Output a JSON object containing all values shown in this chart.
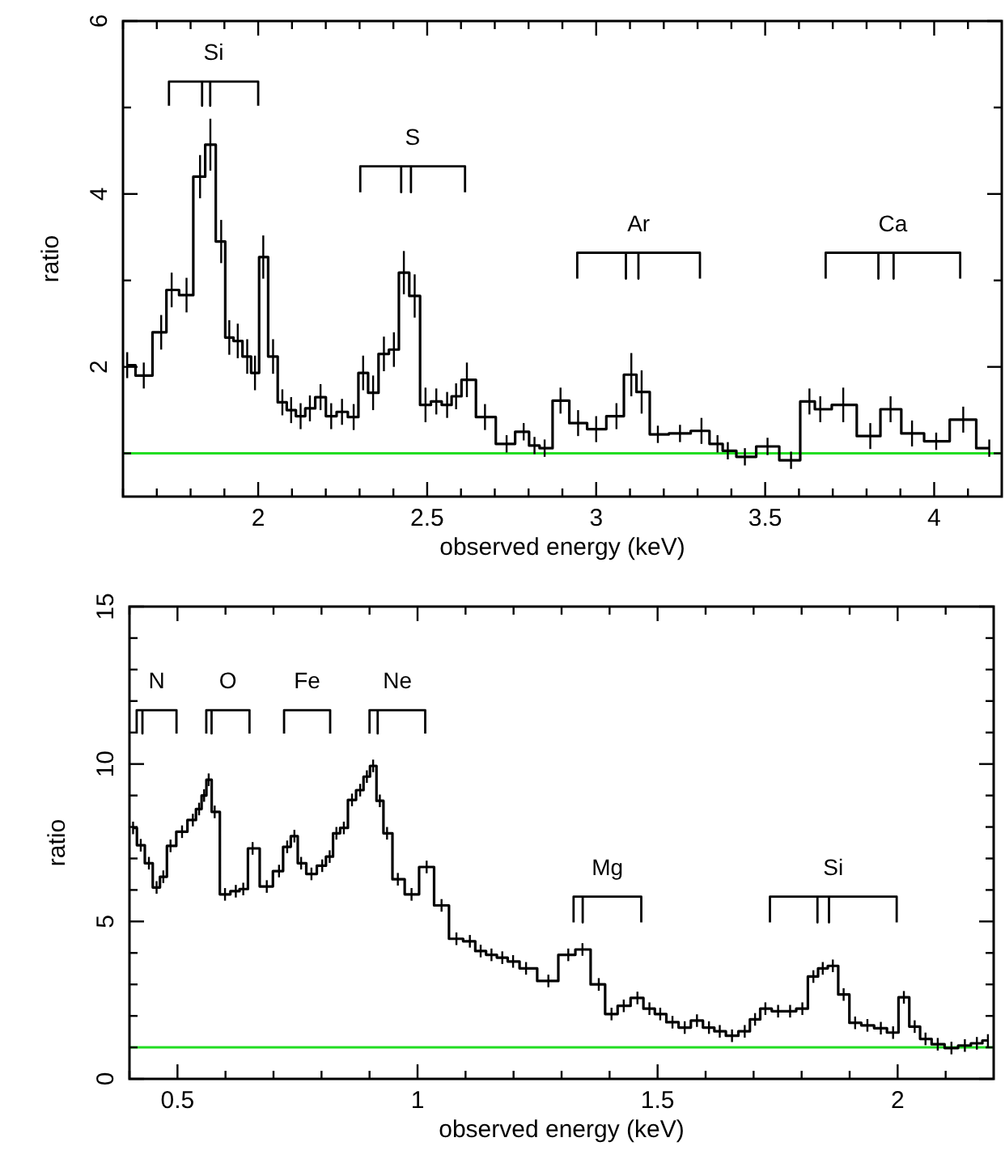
{
  "chart_data": [
    {
      "type": "step",
      "xlabel": "observed energy (keV)",
      "ylabel": "ratio",
      "xlim": [
        1.6,
        4.2
      ],
      "ylim": [
        0.5,
        6
      ],
      "xticks": [
        {
          "value": 1.6,
          "label": null
        },
        {
          "value": 1.7,
          "label": null
        },
        {
          "value": 1.8,
          "label": null
        },
        {
          "value": 1.9,
          "label": null
        },
        2,
        {
          "value": 2.1,
          "label": null
        },
        {
          "value": 2.2,
          "label": null
        },
        {
          "value": 2.3,
          "label": null
        },
        {
          "value": 2.4,
          "label": null
        },
        2.5,
        {
          "value": 2.6,
          "label": null
        },
        {
          "value": 2.7,
          "label": null
        },
        {
          "value": 2.8,
          "label": null
        },
        {
          "value": 2.9,
          "label": null
        },
        3,
        {
          "value": 3.1,
          "label": null
        },
        {
          "value": 3.2,
          "label": null
        },
        {
          "value": 3.3,
          "label": null
        },
        {
          "value": 3.4,
          "label": null
        },
        3.5,
        {
          "value": 3.6,
          "label": null
        },
        {
          "value": 3.7,
          "label": null
        },
        {
          "value": 3.8,
          "label": null
        },
        {
          "value": 3.9,
          "label": null
        },
        4,
        {
          "value": 4.1,
          "label": null
        }
      ],
      "yticks": [
        {
          "value": 1,
          "label": null
        },
        2,
        {
          "value": 3,
          "label": null
        },
        4,
        {
          "value": 5,
          "label": null
        },
        6
      ],
      "ref_lines": [
        {
          "axis": "y",
          "value": 1,
          "color": "#22dd22"
        }
      ],
      "series": [
        {
          "color": "#000000",
          "x": [
            1.6125,
            1.6615,
            1.713,
            1.744,
            1.788,
            1.828,
            1.8585,
            1.8905,
            1.9145,
            1.9395,
            1.9675,
            1.9905,
            2.015,
            2.044,
            2.0715,
            2.0975,
            2.1255,
            2.153,
            2.1845,
            2.216,
            2.248,
            2.2825,
            2.3105,
            2.34,
            2.372,
            2.4015,
            2.431,
            2.463,
            2.495,
            2.527,
            2.559,
            2.5855,
            2.6175,
            2.671,
            2.735,
            2.7855,
            2.8175,
            2.8475,
            2.8945,
            2.9465,
            3.0,
            3.06,
            3.104,
            3.1345,
            3.1825,
            3.248,
            3.3115,
            3.359,
            3.3895,
            3.44,
            3.507,
            3.5765,
            3.631,
            3.663,
            3.731,
            3.811,
            3.871,
            3.9345,
            4.006,
            4.086,
            4.163
          ],
          "values": [
            2.02,
            1.9,
            2.4,
            2.89,
            2.83,
            4.2,
            4.57,
            3.45,
            2.34,
            2.3,
            2.12,
            1.93,
            3.27,
            2.12,
            1.59,
            1.5,
            1.43,
            1.52,
            1.65,
            1.43,
            1.48,
            1.42,
            1.93,
            1.7,
            2.15,
            2.2,
            3.09,
            2.82,
            1.56,
            1.6,
            1.56,
            1.66,
            1.85,
            1.42,
            1.11,
            1.25,
            1.09,
            1.06,
            1.61,
            1.35,
            1.28,
            1.43,
            1.91,
            1.71,
            1.22,
            1.23,
            1.26,
            1.11,
            1.03,
            0.96,
            1.08,
            0.92,
            1.6,
            1.51,
            1.56,
            1.2,
            1.51,
            1.23,
            1.14,
            1.39,
            1.06
          ],
          "errors": [
            0.15,
            0.15,
            0.2,
            0.2,
            0.2,
            0.25,
            0.3,
            0.25,
            0.2,
            0.2,
            0.2,
            0.2,
            0.25,
            0.2,
            0.15,
            0.15,
            0.15,
            0.15,
            0.15,
            0.15,
            0.15,
            0.15,
            0.2,
            0.2,
            0.2,
            0.2,
            0.25,
            0.25,
            0.2,
            0.15,
            0.15,
            0.15,
            0.2,
            0.15,
            0.1,
            0.1,
            0.1,
            0.1,
            0.15,
            0.15,
            0.15,
            0.15,
            0.25,
            0.25,
            0.1,
            0.1,
            0.15,
            0.1,
            0.1,
            0.1,
            0.1,
            0.1,
            0.15,
            0.15,
            0.2,
            0.15,
            0.15,
            0.15,
            0.1,
            0.15,
            0.1
          ]
        },
        {
          "type": "line",
          "name": "Si",
          "color": "#000000",
          "x": [
            1.736,
            1.736,
            1.834,
            1.834,
            1.834,
            1.858,
            1.858,
            1.858,
            2.0,
            2.0
          ],
          "values": [
            5.02,
            5.3,
            5.3,
            5.02,
            5.3,
            5.3,
            5.02,
            5.3,
            5.3,
            5.02
          ]
        },
        {
          "type": "line",
          "name": "S",
          "color": "#000000",
          "x": [
            2.302,
            2.302,
            2.423,
            2.423,
            2.423,
            2.452,
            2.452,
            2.452,
            2.612,
            2.612
          ],
          "values": [
            4.02,
            4.32,
            4.32,
            4.02,
            4.32,
            4.32,
            4.02,
            4.32,
            4.32,
            4.02
          ]
        },
        {
          "type": "line",
          "name": "Ar",
          "color": "#000000",
          "x": [
            2.944,
            2.944,
            3.088,
            3.088,
            3.088,
            3.125,
            3.125,
            3.125,
            3.307,
            3.307
          ],
          "values": [
            3.02,
            3.32,
            3.32,
            3.02,
            3.32,
            3.32,
            3.02,
            3.32,
            3.32,
            3.02
          ]
        },
        {
          "type": "line",
          "name": "Ca",
          "color": "#000000",
          "x": [
            3.679,
            3.679,
            3.835,
            3.835,
            3.835,
            3.88,
            3.88,
            3.88,
            4.077,
            4.077
          ],
          "values": [
            3.02,
            3.32,
            3.32,
            3.02,
            3.32,
            3.32,
            3.02,
            3.32,
            3.32,
            3.02
          ]
        }
      ]
    },
    {
      "type": "step",
      "xlabel": "observed energy (keV)",
      "ylabel": "ratio",
      "xlim": [
        0.4,
        2.2
      ],
      "ylim": [
        0,
        15
      ],
      "xticks": [
        {
          "value": 0.4,
          "label": null
        },
        0.5,
        {
          "value": 0.6,
          "label": null
        },
        {
          "value": 0.7,
          "label": null
        },
        {
          "value": 0.8,
          "label": null
        },
        {
          "value": 0.9,
          "label": null
        },
        1,
        {
          "value": 1.1,
          "label": null
        },
        {
          "value": 1.2,
          "label": null
        },
        {
          "value": 1.3,
          "label": null
        },
        {
          "value": 1.4,
          "label": null
        },
        1.5,
        {
          "value": 1.6,
          "label": null
        },
        {
          "value": 1.7,
          "label": null
        },
        {
          "value": 1.8,
          "label": null
        },
        {
          "value": 1.9,
          "label": null
        },
        2,
        {
          "value": 2.1,
          "label": null
        }
      ],
      "yticks": [
        0,
        {
          "value": 1,
          "label": null
        },
        {
          "value": 2,
          "label": null
        },
        {
          "value": 3,
          "label": null
        },
        {
          "value": 4,
          "label": null
        },
        5,
        {
          "value": 6,
          "label": null
        },
        {
          "value": 7,
          "label": null
        },
        {
          "value": 8,
          "label": null
        },
        {
          "value": 9,
          "label": null
        },
        10,
        {
          "value": 11,
          "label": null
        },
        {
          "value": 12,
          "label": null
        },
        {
          "value": 13,
          "label": null
        },
        {
          "value": 14,
          "label": null
        },
        15
      ],
      "ref_lines": [
        {
          "axis": "y",
          "value": 1,
          "color": "#22dd22"
        }
      ],
      "series": [
        {
          "color": "#000000",
          "x": [
            0.4075,
            0.4235,
            0.4405,
            0.4565,
            0.4705,
            0.4855,
            0.5095,
            0.532,
            0.545,
            0.5555,
            0.565,
            0.5775,
            0.599,
            0.6215,
            0.637,
            0.6565,
            0.686,
            0.7115,
            0.7285,
            0.7435,
            0.7575,
            0.779,
            0.8015,
            0.817,
            0.831,
            0.8465,
            0.8635,
            0.8805,
            0.8945,
            0.9075,
            0.9215,
            0.9365,
            0.959,
            0.9875,
            1.019,
            1.05,
            1.081,
            1.109,
            1.1315,
            1.154,
            1.1765,
            1.199,
            1.226,
            1.2725,
            1.314,
            1.3435,
            1.3775,
            1.404,
            1.4295,
            1.458,
            1.483,
            1.5055,
            1.531,
            1.5565,
            1.582,
            1.607,
            1.6295,
            1.655,
            1.6815,
            1.703,
            1.7245,
            1.751,
            1.776,
            1.8015,
            1.8245,
            1.844,
            1.865,
            1.8875,
            1.9115,
            1.937,
            1.965,
            1.9905,
            2.013,
            2.0355,
            2.058,
            2.0835,
            2.112,
            2.14,
            2.165,
            2.188
          ],
          "values": [
            7.97,
            7.42,
            6.85,
            6.08,
            6.42,
            7.4,
            7.85,
            8.22,
            8.57,
            9.0,
            9.5,
            8.48,
            5.86,
            5.96,
            6.03,
            7.32,
            6.11,
            6.6,
            7.37,
            7.71,
            6.85,
            6.51,
            6.77,
            7.06,
            7.8,
            7.97,
            8.86,
            9.17,
            9.6,
            9.94,
            8.83,
            7.8,
            6.34,
            5.86,
            6.73,
            5.51,
            4.45,
            4.37,
            4.06,
            3.94,
            3.85,
            3.73,
            3.51,
            3.11,
            3.94,
            4.11,
            3.0,
            2.06,
            2.32,
            2.57,
            2.23,
            2.06,
            1.8,
            1.63,
            1.85,
            1.63,
            1.51,
            1.37,
            1.51,
            1.89,
            2.23,
            2.15,
            2.15,
            2.23,
            3.25,
            3.51,
            3.59,
            2.68,
            1.78,
            1.7,
            1.61,
            1.47,
            2.59,
            1.66,
            1.27,
            1.1,
            0.98,
            1.06,
            1.13,
            1.22
          ],
          "errors": [
            0.2,
            0.2,
            0.2,
            0.2,
            0.2,
            0.2,
            0.2,
            0.2,
            0.2,
            0.2,
            0.2,
            0.2,
            0.2,
            0.2,
            0.2,
            0.2,
            0.2,
            0.2,
            0.2,
            0.2,
            0.2,
            0.2,
            0.2,
            0.2,
            0.2,
            0.2,
            0.2,
            0.2,
            0.2,
            0.2,
            0.2,
            0.2,
            0.2,
            0.2,
            0.2,
            0.2,
            0.2,
            0.2,
            0.2,
            0.2,
            0.2,
            0.2,
            0.2,
            0.2,
            0.2,
            0.2,
            0.2,
            0.2,
            0.2,
            0.2,
            0.2,
            0.2,
            0.2,
            0.2,
            0.2,
            0.2,
            0.2,
            0.2,
            0.2,
            0.2,
            0.2,
            0.2,
            0.2,
            0.2,
            0.2,
            0.2,
            0.2,
            0.2,
            0.2,
            0.2,
            0.2,
            0.2,
            0.2,
            0.2,
            0.2,
            0.2,
            0.2,
            0.2,
            0.2,
            0.2
          ]
        },
        {
          "type": "line",
          "name": "N",
          "color": "#000000",
          "x": [
            0.415,
            0.415,
            0.427,
            0.427,
            0.427,
            0.498,
            0.498
          ],
          "values": [
            10.97,
            11.71,
            11.71,
            10.97,
            11.71,
            11.71,
            10.97
          ]
        },
        {
          "type": "line",
          "name": "O",
          "color": "#000000",
          "x": [
            0.56,
            0.56,
            0.571,
            0.571,
            0.571,
            0.65,
            0.65
          ],
          "values": [
            10.97,
            11.71,
            11.71,
            10.97,
            11.71,
            11.71,
            10.97
          ]
        },
        {
          "type": "line",
          "name": "Fe",
          "color": "#000000",
          "x": [
            0.722,
            0.722,
            0.818,
            0.818
          ],
          "values": [
            10.97,
            11.71,
            11.71,
            10.97
          ]
        },
        {
          "type": "line",
          "name": "Ne",
          "color": "#000000",
          "x": [
            0.9,
            0.9,
            0.917,
            0.917,
            0.917,
            1.016,
            1.016
          ],
          "values": [
            10.97,
            11.71,
            11.71,
            10.97,
            11.71,
            11.71,
            10.97
          ]
        },
        {
          "type": "line",
          "name": "Mg",
          "color": "#000000",
          "x": [
            1.325,
            1.325,
            1.344,
            1.344,
            1.344,
            1.466,
            1.466
          ],
          "values": [
            4.97,
            5.79,
            5.79,
            4.97,
            5.79,
            5.79,
            4.97
          ]
        },
        {
          "type": "line",
          "name": "Si",
          "color": "#000000",
          "x": [
            1.734,
            1.734,
            1.833,
            1.833,
            1.833,
            1.857,
            1.857,
            1.857,
            1.998,
            1.998
          ],
          "values": [
            4.97,
            5.79,
            5.79,
            4.97,
            5.79,
            5.79,
            4.97,
            5.79,
            5.79,
            4.97
          ]
        }
      ]
    }
  ]
}
